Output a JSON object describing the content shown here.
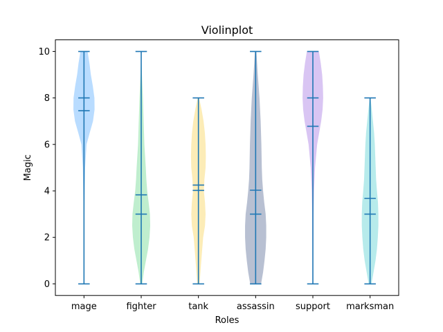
{
  "chart_data": {
    "type": "violin",
    "title": "Violinplot",
    "xlabel": "Roles",
    "ylabel": "Magic",
    "ylim": [
      -0.5,
      10.5
    ],
    "yticks": [
      0,
      2,
      4,
      6,
      8,
      10
    ],
    "grid": false,
    "line_color": "#1f77b4",
    "categories": [
      "mage",
      "fighter",
      "tank",
      "assassin",
      "support",
      "marksman"
    ],
    "series": [
      {
        "category": "mage",
        "color": "#74b9ff",
        "min": 0,
        "max": 10,
        "median": 8,
        "mean": 7.45,
        "density": [
          [
            0,
            0.0
          ],
          [
            1,
            0.0
          ],
          [
            2,
            0.01
          ],
          [
            3,
            0.03
          ],
          [
            4,
            0.05
          ],
          [
            5,
            0.08
          ],
          [
            6,
            0.18
          ],
          [
            6.5,
            0.4
          ],
          [
            7,
            0.63
          ],
          [
            7.5,
            0.74
          ],
          [
            8,
            0.73
          ],
          [
            8.5,
            0.62
          ],
          [
            9,
            0.48
          ],
          [
            9.5,
            0.38
          ],
          [
            10,
            0.25
          ]
        ]
      },
      {
        "category": "fighter",
        "color": "#7fdd9e",
        "min": 0,
        "max": 10,
        "median": 3,
        "mean": 3.83,
        "density": [
          [
            0,
            0.07
          ],
          [
            0.5,
            0.18
          ],
          [
            1,
            0.33
          ],
          [
            1.5,
            0.48
          ],
          [
            2,
            0.58
          ],
          [
            2.5,
            0.63
          ],
          [
            3,
            0.61
          ],
          [
            3.5,
            0.52
          ],
          [
            4,
            0.42
          ],
          [
            4.5,
            0.36
          ],
          [
            5,
            0.32
          ],
          [
            6,
            0.22
          ],
          [
            7,
            0.17
          ],
          [
            8,
            0.12
          ],
          [
            9,
            0.05
          ],
          [
            10,
            0.0
          ]
        ]
      },
      {
        "category": "tank",
        "color": "#fad96f",
        "min": 0,
        "max": 8,
        "median": 4.25,
        "mean": 4.02,
        "density": [
          [
            0,
            0.08
          ],
          [
            1,
            0.2
          ],
          [
            2,
            0.33
          ],
          [
            2.5,
            0.46
          ],
          [
            3,
            0.5
          ],
          [
            3.5,
            0.46
          ],
          [
            4,
            0.38
          ],
          [
            4.5,
            0.42
          ],
          [
            5,
            0.5
          ],
          [
            5.5,
            0.52
          ],
          [
            6,
            0.5
          ],
          [
            6.5,
            0.45
          ],
          [
            7,
            0.36
          ],
          [
            7.5,
            0.22
          ],
          [
            8,
            0.05
          ]
        ]
      },
      {
        "category": "assassin",
        "color": "#7282a6",
        "min": 0,
        "max": 10,
        "median": 3,
        "mean": 4.03,
        "density": [
          [
            0,
            0.38
          ],
          [
            0.5,
            0.52
          ],
          [
            1,
            0.62
          ],
          [
            1.5,
            0.7
          ],
          [
            2,
            0.74
          ],
          [
            2.5,
            0.74
          ],
          [
            3,
            0.7
          ],
          [
            3.5,
            0.6
          ],
          [
            4,
            0.52
          ],
          [
            4.5,
            0.46
          ],
          [
            5,
            0.43
          ],
          [
            6,
            0.4
          ],
          [
            7,
            0.35
          ],
          [
            8,
            0.27
          ],
          [
            9,
            0.15
          ],
          [
            10,
            0.05
          ]
        ]
      },
      {
        "category": "support",
        "color": "#b38ce8",
        "min": 0,
        "max": 10,
        "median": 8,
        "mean": 6.78,
        "density": [
          [
            0,
            0.03
          ],
          [
            1,
            0.03
          ],
          [
            2,
            0.04
          ],
          [
            3,
            0.05
          ],
          [
            4,
            0.08
          ],
          [
            5,
            0.15
          ],
          [
            6,
            0.3
          ],
          [
            6.5,
            0.44
          ],
          [
            7,
            0.58
          ],
          [
            7.5,
            0.68
          ],
          [
            8,
            0.72
          ],
          [
            8.5,
            0.7
          ],
          [
            9,
            0.65
          ],
          [
            9.5,
            0.55
          ],
          [
            10,
            0.42
          ]
        ]
      },
      {
        "category": "marksman",
        "color": "#6fd7d7",
        "min": 0,
        "max": 8,
        "median": 3,
        "mean": 3.68,
        "density": [
          [
            0,
            0.1
          ],
          [
            0.5,
            0.24
          ],
          [
            1,
            0.38
          ],
          [
            1.5,
            0.48
          ],
          [
            2,
            0.54
          ],
          [
            2.5,
            0.58
          ],
          [
            3,
            0.58
          ],
          [
            3.5,
            0.55
          ],
          [
            4,
            0.48
          ],
          [
            4.5,
            0.42
          ],
          [
            5,
            0.39
          ],
          [
            5.5,
            0.36
          ],
          [
            6,
            0.33
          ],
          [
            6.5,
            0.28
          ],
          [
            7,
            0.2
          ],
          [
            7.5,
            0.12
          ],
          [
            8,
            0.03
          ]
        ]
      }
    ]
  }
}
